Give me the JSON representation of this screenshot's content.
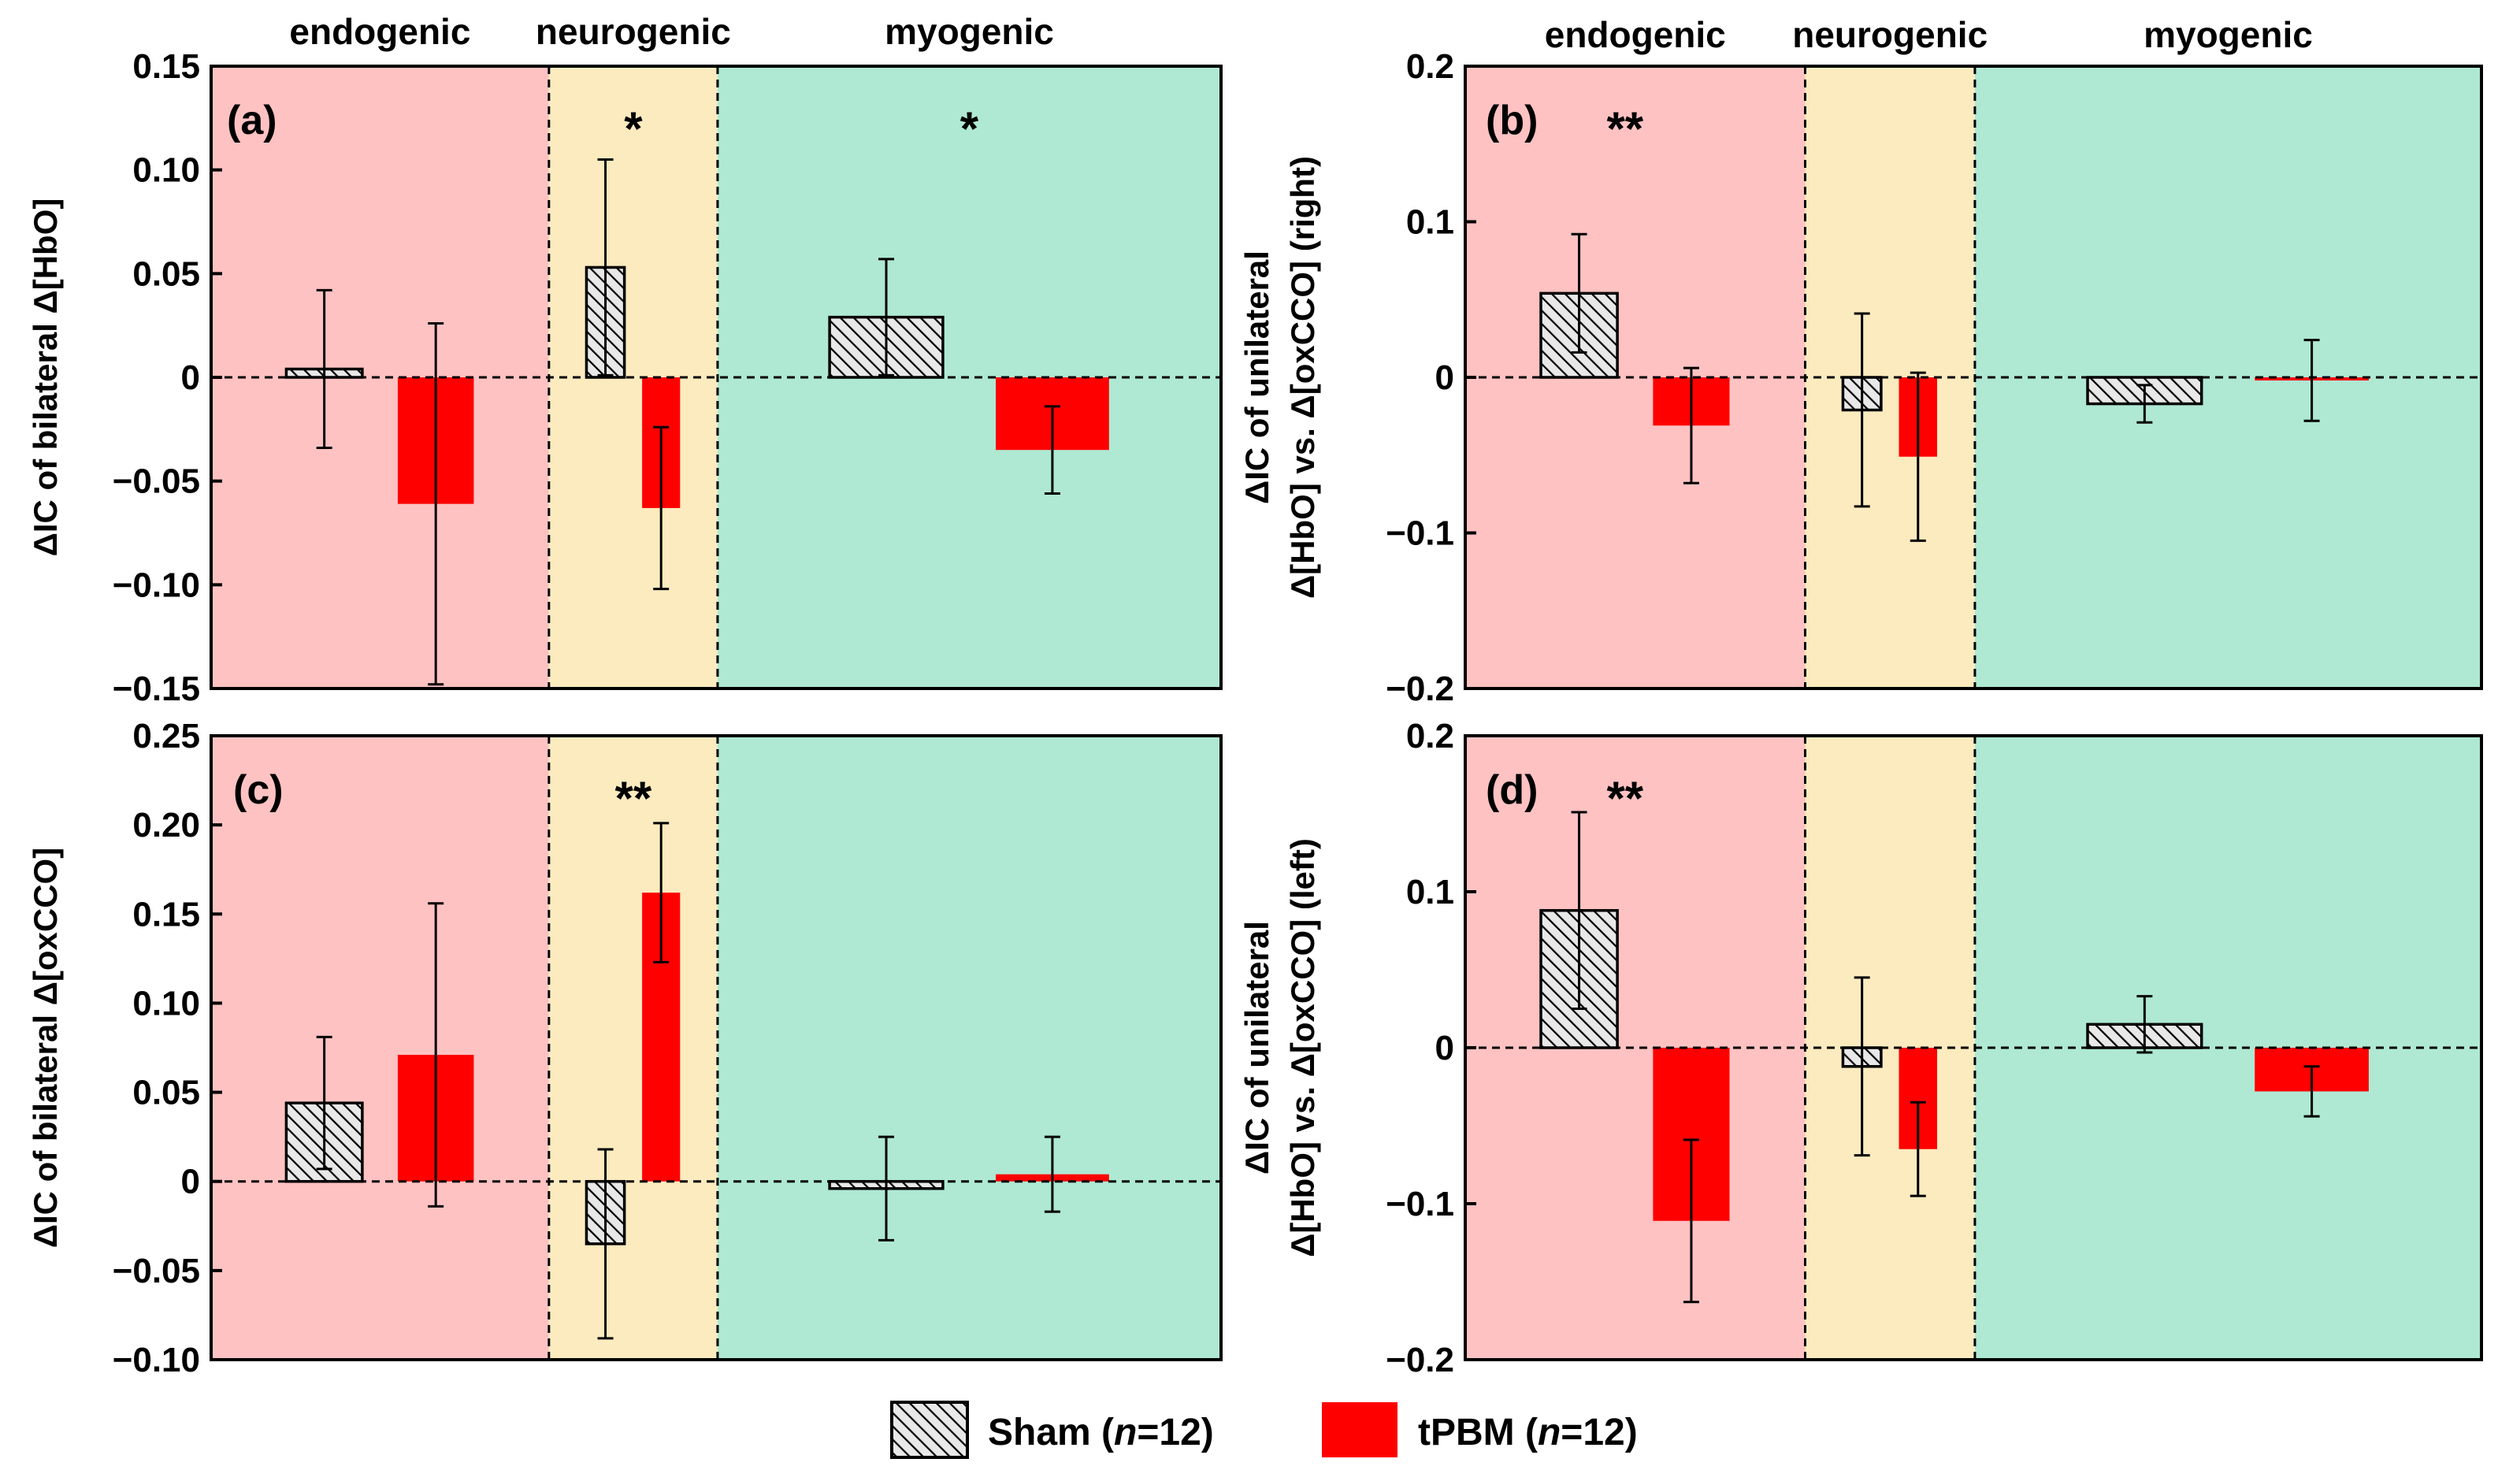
{
  "colors": {
    "endogenic": "#ffc2c2",
    "neurogenic": "#fcebbf",
    "myogenic": "#afe9d3",
    "tpbm": "#ff0000",
    "sham_fill": "#e6e6e6",
    "axis": "#000000"
  },
  "legend": {
    "sham": {
      "label": "Sham (",
      "italic": "n",
      "suffix": "=12)"
    },
    "tpbm": {
      "label": "tPBM (",
      "italic": "n",
      "suffix": "=12)"
    }
  },
  "chart_data": [
    {
      "type": "bar",
      "panel": "(a)",
      "bands": [
        "endogenic",
        "neurogenic",
        "myogenic"
      ],
      "ylabel": "ΔIC of bilateral Δ[HbO]",
      "ylim": [
        -0.15,
        0.15
      ],
      "yticks": [
        0.15,
        0.1,
        0.05,
        0,
        -0.05,
        -0.1,
        -0.15
      ],
      "ytick_labels": [
        "0.15",
        "0.10",
        "0.05",
        "0",
        "−0.05",
        "−0.10",
        "−0.15"
      ],
      "significance": [
        "",
        "*",
        "*"
      ],
      "series": [
        {
          "name": "Sham",
          "values": [
            0.004,
            0.053,
            0.029
          ],
          "errors": [
            0.038,
            0.052,
            0.028
          ]
        },
        {
          "name": "tPBM",
          "values": [
            -0.061,
            -0.063,
            -0.035
          ],
          "errors": [
            0.087,
            0.039,
            0.021
          ]
        }
      ]
    },
    {
      "type": "bar",
      "panel": "(b)",
      "bands": [
        "endogenic",
        "neurogenic",
        "myogenic"
      ],
      "ylabel": [
        "ΔIC of unilateral",
        "Δ[HbO] vs. Δ[oxCCO] (right)"
      ],
      "ylim": [
        -0.2,
        0.2
      ],
      "yticks": [
        0.2,
        0.1,
        0,
        -0.1,
        -0.2
      ],
      "ytick_labels": [
        "0.2",
        "0.1",
        "0",
        "−0.1",
        "−0.2"
      ],
      "significance": [
        "**",
        "",
        ""
      ],
      "series": [
        {
          "name": "Sham",
          "values": [
            0.054,
            -0.021,
            -0.017
          ],
          "errors": [
            0.038,
            0.062,
            0.012
          ]
        },
        {
          "name": "tPBM",
          "values": [
            -0.031,
            -0.051,
            -0.002
          ],
          "errors": [
            0.037,
            0.054,
            0.026
          ]
        }
      ]
    },
    {
      "type": "bar",
      "panel": "(c)",
      "bands": [
        "endogenic",
        "neurogenic",
        "myogenic"
      ],
      "ylabel": "ΔIC of bilateral Δ[oxCCO]",
      "ylim": [
        -0.1,
        0.25
      ],
      "yticks": [
        0.25,
        0.2,
        0.15,
        0.1,
        0.05,
        0,
        -0.05,
        -0.1
      ],
      "ytick_labels": [
        "0.25",
        "0.20",
        "0.15",
        "0.10",
        "0.05",
        "0",
        "−0.05",
        "−0.10"
      ],
      "significance": [
        "",
        "**",
        ""
      ],
      "series": [
        {
          "name": "Sham",
          "values": [
            0.044,
            -0.035,
            -0.004
          ],
          "errors": [
            0.037,
            0.053,
            0.029
          ]
        },
        {
          "name": "tPBM",
          "values": [
            0.071,
            0.162,
            0.004
          ],
          "errors": [
            0.085,
            0.039,
            0.021
          ]
        }
      ]
    },
    {
      "type": "bar",
      "panel": "(d)",
      "bands": [
        "endogenic",
        "neurogenic",
        "myogenic"
      ],
      "ylabel": [
        "ΔIC of unilateral",
        "Δ[HbO] vs. Δ[oxCCO] (left)"
      ],
      "ylim": [
        -0.2,
        0.2
      ],
      "yticks": [
        0.2,
        0.1,
        0,
        -0.1,
        -0.2
      ],
      "ytick_labels": [
        "0.2",
        "0.1",
        "0",
        "−0.1",
        "−0.2"
      ],
      "significance": [
        "**",
        "",
        ""
      ],
      "series": [
        {
          "name": "Sham",
          "values": [
            0.088,
            -0.012,
            0.015
          ],
          "errors": [
            0.063,
            0.057,
            0.018
          ]
        },
        {
          "name": "tPBM",
          "values": [
            -0.111,
            -0.065,
            -0.028
          ],
          "errors": [
            0.052,
            0.03,
            0.016
          ]
        }
      ]
    }
  ]
}
